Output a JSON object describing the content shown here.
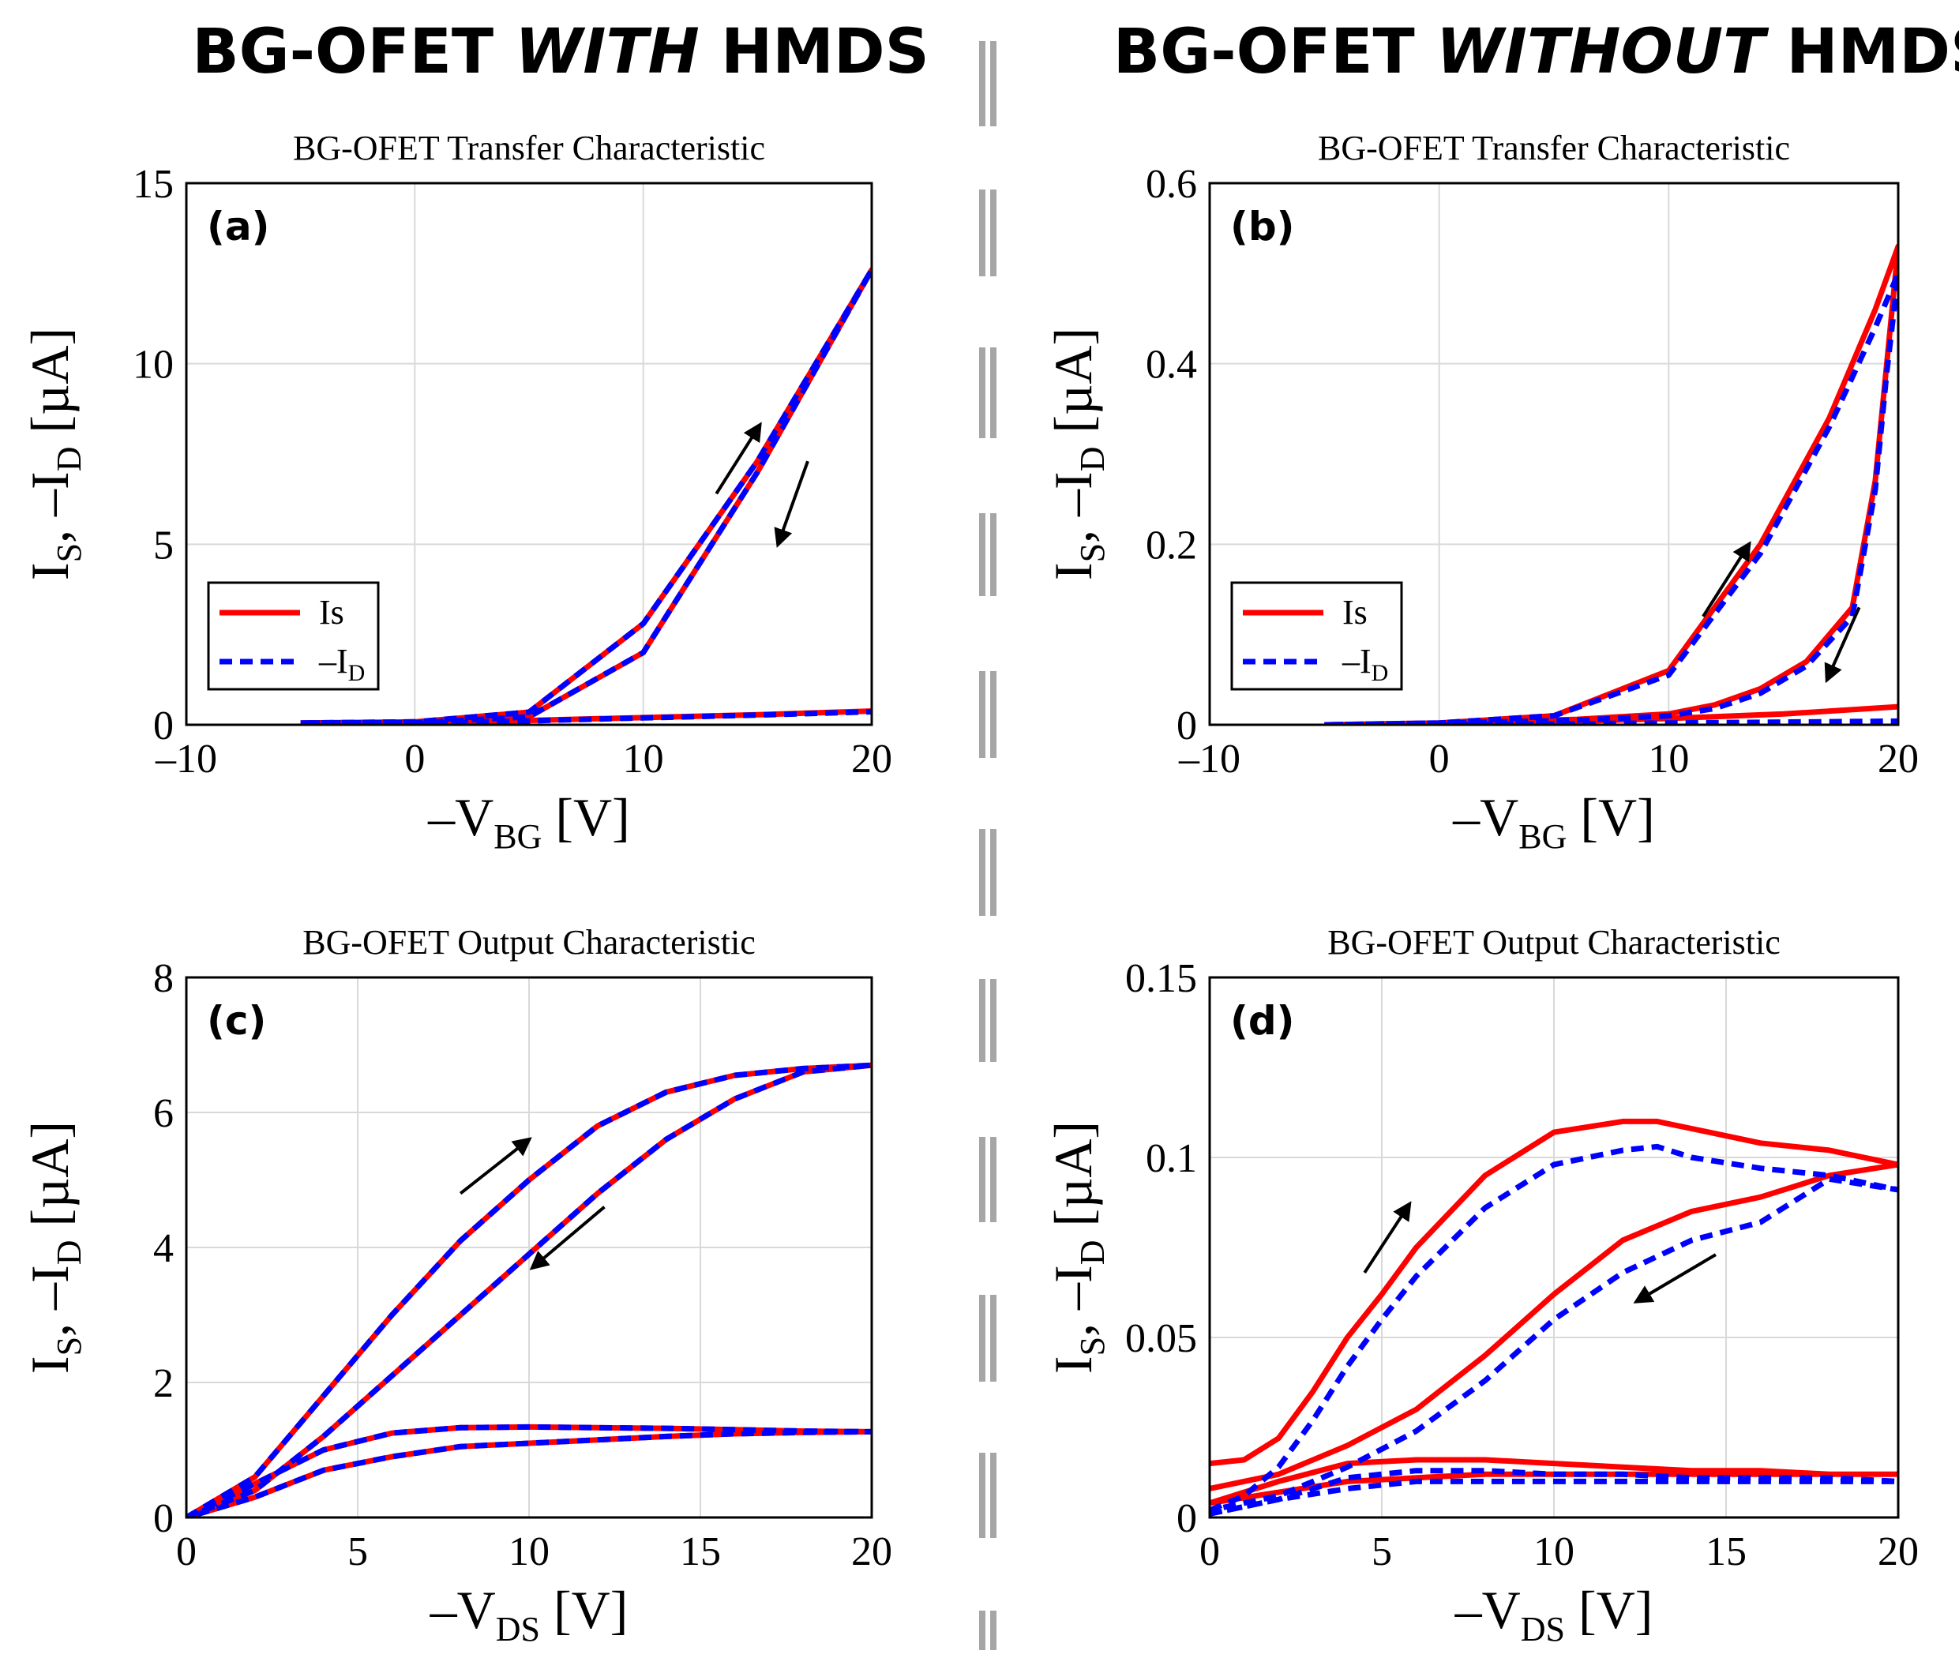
{
  "headings": {
    "left": {
      "pre": "BG-OFET ",
      "em": "WITH",
      "post": " HMDS"
    },
    "right": {
      "pre": "BG-OFET ",
      "em": "WITHOUT",
      "post": " HMDS"
    }
  },
  "colors": {
    "is": "#ff0000",
    "id": "#0000ff",
    "arrow": "#000000",
    "divider": "#a6a6a6"
  },
  "legend": {
    "is": "Is",
    "id_main": "–I",
    "id_sub": "D"
  },
  "chart_data": [
    {
      "id": "a",
      "label": "(a)",
      "type": "line",
      "title": "BG-OFET Transfer Characteristic",
      "xlabel": {
        "main": "–V",
        "sub": "BG",
        "tail": " [V]"
      },
      "ylabel": {
        "pre": "I",
        "sub1": "S",
        "mid": ", –I",
        "sub2": "D",
        "tail": " [µA]"
      },
      "xlim": [
        -10,
        20
      ],
      "ylim": [
        0,
        15
      ],
      "xticks": [
        -10,
        0,
        10,
        20
      ],
      "yticks": [
        0,
        5,
        10,
        15
      ],
      "xtick_labels": [
        "–10",
        "0",
        "10",
        "20"
      ],
      "ytick_labels": [
        "0",
        "5",
        "10",
        "15"
      ],
      "grid": true,
      "legend": "lower-left",
      "series": [
        {
          "name": "Is",
          "x": [
            -5,
            0,
            5,
            10,
            15,
            20,
            15,
            10,
            5,
            0,
            -5
          ],
          "y": [
            0.05,
            0.08,
            0.35,
            2.8,
            7.3,
            12.6,
            7.0,
            2.0,
            0.22,
            0.06,
            0.05
          ]
        },
        {
          "name": "Is",
          "x": [
            0,
            5,
            10,
            15,
            20
          ],
          "y": [
            0.04,
            0.12,
            0.2,
            0.28,
            0.38
          ]
        },
        {
          "name": "–I_D",
          "x": [
            -5,
            0,
            5,
            10,
            15,
            20,
            15,
            10,
            5,
            0,
            -5
          ],
          "y": [
            0.05,
            0.08,
            0.35,
            2.8,
            7.3,
            12.6,
            7.0,
            2.0,
            0.22,
            0.06,
            0.05
          ]
        },
        {
          "name": "–I_D",
          "x": [
            0,
            5,
            10,
            15,
            20
          ],
          "y": [
            0.03,
            0.11,
            0.19,
            0.27,
            0.36
          ]
        }
      ],
      "arrows": [
        {
          "from": [
            13.2,
            6.4
          ],
          "to": [
            15.1,
            8.3
          ]
        },
        {
          "from": [
            17.2,
            7.3
          ],
          "to": [
            15.9,
            5.0
          ]
        }
      ]
    },
    {
      "id": "b",
      "label": "(b)",
      "type": "line",
      "title": "BG-OFET Transfer Characteristic",
      "xlabel": {
        "main": "–V",
        "sub": "BG",
        "tail": " [V]"
      },
      "ylabel": {
        "pre": "I",
        "sub1": "S",
        "mid": ", –I",
        "sub2": "D",
        "tail": " [µA]"
      },
      "xlim": [
        -10,
        20
      ],
      "ylim": [
        0,
        0.6
      ],
      "xticks": [
        -10,
        0,
        10,
        20
      ],
      "yticks": [
        0,
        0.2,
        0.4,
        0.6
      ],
      "xtick_labels": [
        "–10",
        "0",
        "10",
        "20"
      ],
      "ytick_labels": [
        "0",
        "0.2",
        "0.4",
        "0.6"
      ],
      "grid": true,
      "legend": "lower-left",
      "series": [
        {
          "name": "Is",
          "x": [
            -5,
            0,
            5,
            10,
            14,
            17,
            19,
            20,
            19.5,
            19,
            18,
            16,
            14,
            12,
            10,
            6,
            0,
            -5
          ],
          "y": [
            0,
            0.002,
            0.01,
            0.06,
            0.2,
            0.34,
            0.46,
            0.53,
            0.4,
            0.27,
            0.13,
            0.07,
            0.04,
            0.022,
            0.012,
            0.006,
            0.002,
            0
          ]
        },
        {
          "name": "Is",
          "x": [
            0,
            5,
            10,
            15,
            20
          ],
          "y": [
            0.001,
            0.003,
            0.007,
            0.012,
            0.02
          ]
        },
        {
          "name": "–I_D",
          "x": [
            -5,
            0,
            5,
            10,
            14,
            17,
            19,
            20,
            19.5,
            19,
            18,
            16,
            14,
            12,
            10,
            6,
            0,
            -5
          ],
          "y": [
            0,
            0.002,
            0.01,
            0.055,
            0.19,
            0.33,
            0.44,
            0.5,
            0.39,
            0.26,
            0.12,
            0.065,
            0.035,
            0.018,
            0.01,
            0.005,
            0.002,
            0
          ]
        },
        {
          "name": "–I_D",
          "x": [
            0,
            5,
            10,
            15,
            20
          ],
          "y": [
            0.0,
            0.001,
            0.002,
            0.003,
            0.004
          ]
        }
      ],
      "arrows": [
        {
          "from": [
            11.5,
            0.12
          ],
          "to": [
            13.5,
            0.2
          ]
        },
        {
          "from": [
            18.3,
            0.13
          ],
          "to": [
            16.9,
            0.05
          ]
        }
      ]
    },
    {
      "id": "c",
      "label": "(c)",
      "type": "line",
      "title": "BG-OFET Output Characteristic",
      "xlabel": {
        "main": "–V",
        "sub": "DS",
        "tail": " [V]"
      },
      "ylabel": {
        "pre": "I",
        "sub1": "S",
        "mid": ", –I",
        "sub2": "D",
        "tail": " [µA]"
      },
      "xlim": [
        0,
        20
      ],
      "ylim": [
        0,
        8
      ],
      "xticks": [
        0,
        5,
        10,
        15,
        20
      ],
      "yticks": [
        0,
        2,
        4,
        6,
        8
      ],
      "xtick_labels": [
        "0",
        "5",
        "10",
        "15",
        "20"
      ],
      "ytick_labels": [
        "0",
        "2",
        "4",
        "6",
        "8"
      ],
      "grid": true,
      "legend": "none",
      "series": [
        {
          "name": "Is",
          "x": [
            0,
            2,
            4,
            6,
            8,
            10,
            12,
            14,
            16,
            18,
            20,
            18,
            16,
            14,
            12,
            10,
            8,
            6,
            4,
            2,
            0
          ],
          "y": [
            0,
            0.6,
            1.8,
            3.0,
            4.1,
            5.0,
            5.8,
            6.3,
            6.55,
            6.65,
            6.7,
            6.6,
            6.2,
            5.6,
            4.8,
            3.9,
            3.0,
            2.1,
            1.2,
            0.4,
            0
          ]
        },
        {
          "name": "Is",
          "x": [
            0,
            2,
            4,
            6,
            8,
            10,
            12,
            14,
            16,
            18,
            20,
            18,
            16,
            14,
            12,
            10,
            8,
            6,
            4,
            2,
            0
          ],
          "y": [
            0,
            0.5,
            1.0,
            1.25,
            1.33,
            1.34,
            1.33,
            1.32,
            1.3,
            1.28,
            1.27,
            1.26,
            1.24,
            1.2,
            1.15,
            1.1,
            1.05,
            0.9,
            0.7,
            0.3,
            0
          ]
        },
        {
          "name": "–I_D",
          "x": [
            0,
            2,
            4,
            6,
            8,
            10,
            12,
            14,
            16,
            18,
            20,
            18,
            16,
            14,
            12,
            10,
            8,
            6,
            4,
            2,
            0
          ],
          "y": [
            0,
            0.6,
            1.8,
            3.0,
            4.1,
            5.0,
            5.8,
            6.3,
            6.55,
            6.65,
            6.7,
            6.6,
            6.2,
            5.6,
            4.8,
            3.9,
            3.0,
            2.1,
            1.2,
            0.4,
            0
          ]
        },
        {
          "name": "–I_D",
          "x": [
            0,
            2,
            4,
            6,
            8,
            10,
            12,
            14,
            16,
            18,
            20,
            18,
            16,
            14,
            12,
            10,
            8,
            6,
            4,
            2,
            0
          ],
          "y": [
            0,
            0.5,
            1.0,
            1.25,
            1.33,
            1.34,
            1.33,
            1.32,
            1.3,
            1.28,
            1.27,
            1.26,
            1.24,
            1.2,
            1.15,
            1.1,
            1.05,
            0.9,
            0.7,
            0.3,
            0
          ]
        }
      ],
      "arrows": [
        {
          "from": [
            8.0,
            4.8
          ],
          "to": [
            10.0,
            5.6
          ]
        },
        {
          "from": [
            12.2,
            4.6
          ],
          "to": [
            10.1,
            3.7
          ]
        }
      ]
    },
    {
      "id": "d",
      "label": "(d)",
      "type": "line",
      "title": "BG-OFET Output Characteristic",
      "xlabel": {
        "main": "–V",
        "sub": "DS",
        "tail": " [V]"
      },
      "ylabel": {
        "pre": "I",
        "sub1": "S",
        "mid": ", –I",
        "sub2": "D",
        "tail": " [µA]"
      },
      "xlim": [
        0,
        20
      ],
      "ylim": [
        0,
        0.15
      ],
      "xticks": [
        0,
        5,
        10,
        15,
        20
      ],
      "yticks": [
        0,
        0.05,
        0.1,
        0.15
      ],
      "xtick_labels": [
        "0",
        "5",
        "10",
        "15",
        "20"
      ],
      "ytick_labels": [
        "0",
        "0.05",
        "0.1",
        "0.15"
      ],
      "grid": true,
      "legend": "none",
      "series": [
        {
          "name": "Is",
          "x": [
            0,
            1,
            2,
            3,
            4,
            5,
            6,
            8,
            10,
            12,
            13,
            14,
            16,
            18,
            20,
            18,
            16,
            14,
            12,
            10,
            8,
            6,
            4,
            2,
            0
          ],
          "y": [
            0.015,
            0.016,
            0.022,
            0.035,
            0.05,
            0.062,
            0.075,
            0.095,
            0.107,
            0.11,
            0.11,
            0.108,
            0.104,
            0.102,
            0.098,
            0.095,
            0.089,
            0.085,
            0.077,
            0.062,
            0.045,
            0.03,
            0.02,
            0.012,
            0.008
          ]
        },
        {
          "name": "Is",
          "x": [
            0,
            2,
            4,
            6,
            8,
            10,
            12,
            14,
            16,
            18,
            20,
            18,
            16,
            14,
            12,
            10,
            8,
            6,
            4,
            2,
            0
          ],
          "y": [
            0.004,
            0.01,
            0.015,
            0.016,
            0.016,
            0.015,
            0.014,
            0.013,
            0.013,
            0.012,
            0.012,
            0.012,
            0.012,
            0.012,
            0.012,
            0.012,
            0.012,
            0.011,
            0.01,
            0.007,
            0.004
          ]
        },
        {
          "name": "–I_D",
          "x": [
            0,
            1,
            2,
            3,
            4,
            5,
            6,
            8,
            10,
            12,
            13,
            14,
            16,
            18,
            20,
            18,
            16,
            14,
            12,
            10,
            8,
            6,
            4,
            2,
            0
          ],
          "y": [
            0.002,
            0.006,
            0.014,
            0.027,
            0.042,
            0.055,
            0.067,
            0.086,
            0.098,
            0.102,
            0.103,
            0.1,
            0.097,
            0.095,
            0.091,
            0.094,
            0.082,
            0.077,
            0.068,
            0.055,
            0.038,
            0.024,
            0.014,
            0.006,
            0.002
          ]
        },
        {
          "name": "–I_D",
          "x": [
            0,
            2,
            4,
            6,
            8,
            10,
            12,
            14,
            16,
            18,
            20,
            18,
            16,
            14,
            12,
            10,
            8,
            6,
            4,
            2,
            0
          ],
          "y": [
            0.001,
            0.005,
            0.011,
            0.013,
            0.013,
            0.012,
            0.012,
            0.011,
            0.011,
            0.011,
            0.01,
            0.01,
            0.01,
            0.01,
            0.01,
            0.01,
            0.01,
            0.01,
            0.008,
            0.005,
            0.001
          ]
        }
      ],
      "arrows": [
        {
          "from": [
            4.5,
            0.068
          ],
          "to": [
            5.8,
            0.087
          ]
        },
        {
          "from": [
            14.7,
            0.073
          ],
          "to": [
            12.4,
            0.06
          ]
        }
      ]
    }
  ]
}
